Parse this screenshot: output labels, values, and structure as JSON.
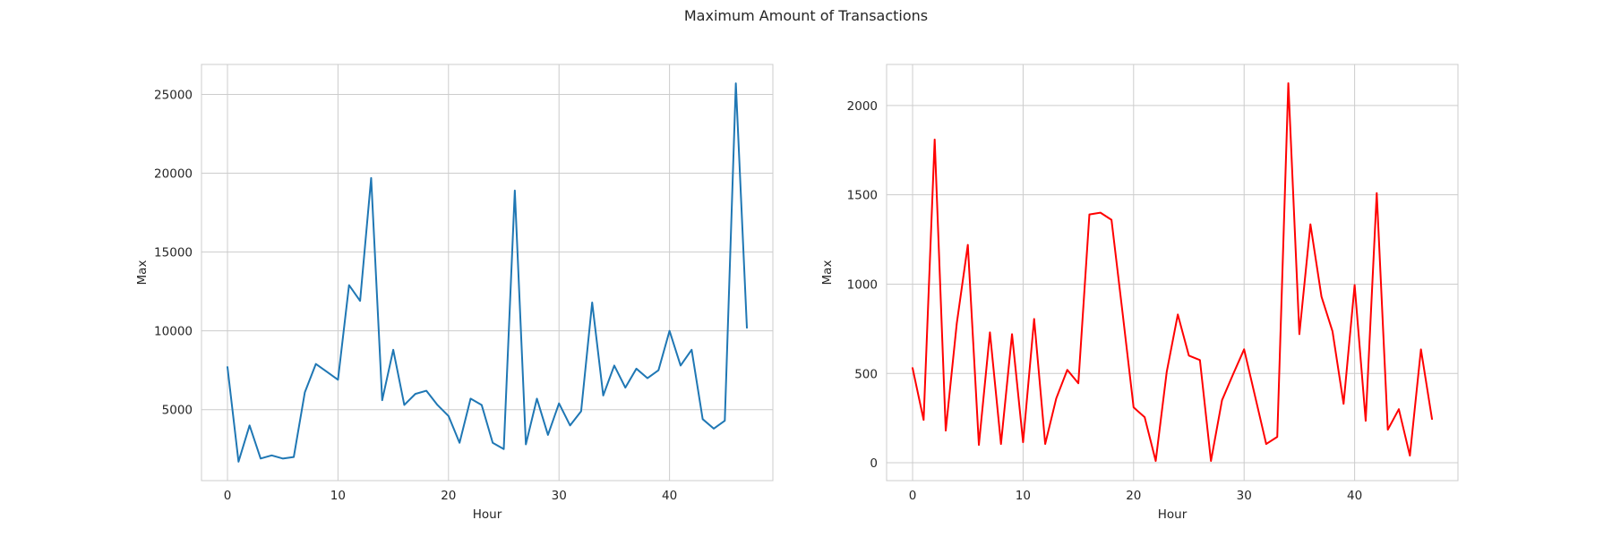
{
  "figure_title": "Maximum Amount of Transactions",
  "chart_data": [
    {
      "type": "line",
      "title": "",
      "xlabel": "Hour",
      "ylabel": "Max",
      "color": "#1f77b4",
      "xlim": [
        -2.35,
        49.35
      ],
      "ylim": [
        500,
        26900
      ],
      "xticks": [
        0,
        10,
        20,
        30,
        40
      ],
      "yticks": [
        5000,
        10000,
        15000,
        20000,
        25000
      ],
      "grid": true,
      "x": [
        0,
        1,
        2,
        3,
        4,
        5,
        6,
        7,
        8,
        9,
        10,
        11,
        12,
        13,
        14,
        15,
        16,
        17,
        18,
        19,
        20,
        21,
        22,
        23,
        24,
        25,
        26,
        27,
        28,
        29,
        30,
        31,
        32,
        33,
        34,
        35,
        36,
        37,
        38,
        39,
        40,
        41,
        42,
        43,
        44,
        45,
        46,
        47
      ],
      "values": [
        7700,
        1700,
        4000,
        1900,
        2100,
        1900,
        2000,
        6100,
        7900,
        7400,
        6900,
        12900,
        11900,
        19700,
        5600,
        8800,
        5300,
        6000,
        6200,
        5300,
        4600,
        2900,
        5700,
        5300,
        2900,
        2500,
        18900,
        2800,
        5700,
        3400,
        5400,
        4000,
        4900,
        11800,
        5900,
        7800,
        6400,
        7600,
        7000,
        7500,
        10000,
        7800,
        8800,
        4400,
        3800,
        4300,
        25700,
        10200
      ]
    },
    {
      "type": "line",
      "title": "",
      "xlabel": "Hour",
      "ylabel": "Max",
      "color": "#ff0000",
      "xlim": [
        -2.35,
        49.35
      ],
      "ylim": [
        -100,
        2230
      ],
      "xticks": [
        0,
        10,
        20,
        30,
        40
      ],
      "yticks": [
        0,
        500,
        1000,
        1500,
        2000
      ],
      "grid": true,
      "x": [
        0,
        1,
        2,
        3,
        4,
        5,
        6,
        7,
        8,
        9,
        10,
        11,
        12,
        13,
        14,
        15,
        16,
        17,
        18,
        19,
        20,
        21,
        22,
        23,
        24,
        25,
        26,
        27,
        28,
        29,
        30,
        31,
        32,
        33,
        34,
        35,
        36,
        37,
        38,
        39,
        40,
        41,
        42,
        43,
        44,
        45,
        46,
        47
      ],
      "values": [
        530,
        240,
        1810,
        180,
        780,
        1220,
        100,
        730,
        105,
        720,
        115,
        805,
        105,
        360,
        520,
        445,
        1390,
        1400,
        1360,
        840,
        310,
        255,
        10,
        510,
        830,
        600,
        575,
        10,
        350,
        495,
        635,
        370,
        105,
        145,
        2125,
        720,
        1335,
        930,
        735,
        330,
        995,
        235,
        1510,
        185,
        300,
        40,
        635,
        245
      ]
    }
  ]
}
